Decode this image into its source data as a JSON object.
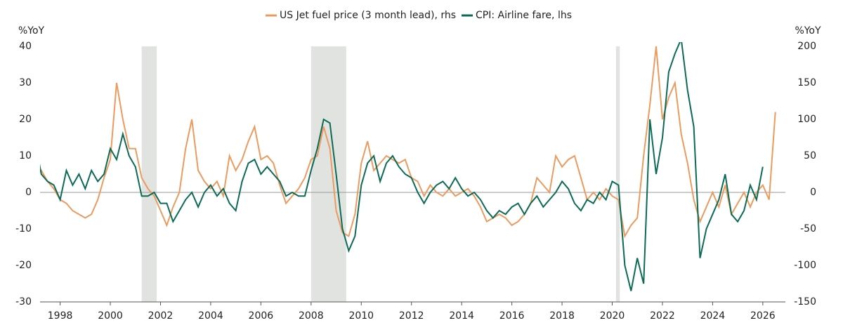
{
  "chart_data": {
    "type": "line",
    "y_label": "%YoY",
    "y2_label": "%YoY",
    "xlim": [
      1997.2,
      2026.9
    ],
    "xticks": [
      1998,
      2000,
      2002,
      2004,
      2006,
      2008,
      2010,
      2012,
      2014,
      2016,
      2018,
      2020,
      2022,
      2024,
      2026
    ],
    "ylim": [
      -30,
      40
    ],
    "yticks": [
      40,
      30,
      20,
      10,
      0,
      -10,
      -20,
      -30
    ],
    "y2lim": [
      -150,
      200
    ],
    "y2ticks": [
      200,
      150,
      100,
      50,
      0,
      -50,
      -100,
      -150
    ],
    "shaded_periods": [
      [
        2001.25,
        2001.85
      ],
      [
        2008.0,
        2009.4
      ],
      [
        2020.15,
        2020.3
      ]
    ],
    "shade_color": "#e1e3e1",
    "x": [
      1997,
      1997.25,
      1997.5,
      1997.75,
      1998,
      1998.25,
      1998.5,
      1998.75,
      1999,
      1999.25,
      1999.5,
      1999.75,
      2000,
      2000.25,
      2000.5,
      2000.75,
      2001,
      2001.25,
      2001.5,
      2001.75,
      2002,
      2002.25,
      2002.5,
      2002.75,
      2003,
      2003.25,
      2003.5,
      2003.75,
      2004,
      2004.25,
      2004.5,
      2004.75,
      2005,
      2005.25,
      2005.5,
      2005.75,
      2006,
      2006.25,
      2006.5,
      2006.75,
      2007,
      2007.25,
      2007.5,
      2007.75,
      2008,
      2008.25,
      2008.5,
      2008.75,
      2009,
      2009.25,
      2009.5,
      2009.75,
      2010,
      2010.25,
      2010.5,
      2010.75,
      2011,
      2011.25,
      2011.5,
      2011.75,
      2012,
      2012.25,
      2012.5,
      2012.75,
      2013,
      2013.25,
      2013.5,
      2013.75,
      2014,
      2014.25,
      2014.5,
      2014.75,
      2015,
      2015.25,
      2015.5,
      2015.75,
      2016,
      2016.25,
      2016.5,
      2016.75,
      2017,
      2017.25,
      2017.5,
      2017.75,
      2018,
      2018.25,
      2018.5,
      2018.75,
      2019,
      2019.25,
      2019.5,
      2019.75,
      2020,
      2020.25,
      2020.5,
      2020.75,
      2021,
      2021.25,
      2021.5,
      2021.75,
      2022,
      2022.25,
      2022.5,
      2022.75,
      2023,
      2023.25,
      2023.5,
      2023.75,
      2024,
      2024.25,
      2024.5,
      2024.75,
      2025,
      2025.25,
      2025.5,
      2025.75,
      2026,
      2026.25,
      2026.5
    ],
    "series": [
      {
        "name": "US Jet fuel price (3 month lead), rhs",
        "color": "#eb9b5f",
        "axis": "y2",
        "values": [
          25,
          30,
          15,
          5,
          -10,
          -15,
          -25,
          -30,
          -35,
          -30,
          -10,
          20,
          45,
          150,
          100,
          60,
          60,
          20,
          5,
          -5,
          -25,
          -45,
          -20,
          0,
          60,
          100,
          30,
          15,
          5,
          15,
          -5,
          50,
          30,
          45,
          70,
          90,
          45,
          50,
          40,
          10,
          -15,
          -5,
          5,
          20,
          45,
          50,
          90,
          60,
          -25,
          -55,
          -60,
          -30,
          40,
          70,
          30,
          40,
          50,
          45,
          40,
          45,
          20,
          15,
          -5,
          10,
          0,
          -5,
          5,
          -5,
          0,
          5,
          -5,
          -20,
          -40,
          -35,
          -30,
          -35,
          -45,
          -40,
          -30,
          -15,
          20,
          10,
          0,
          50,
          35,
          45,
          50,
          20,
          -10,
          0,
          -10,
          5,
          -5,
          -10,
          -60,
          -45,
          -35,
          50,
          120,
          200,
          100,
          130,
          150,
          80,
          40,
          -10,
          -40,
          -20,
          0,
          -20,
          10,
          -30,
          -15,
          0,
          -20,
          0,
          10,
          -10,
          110
        ]
      },
      {
        "name": "CPI: Airline fare, lhs",
        "color": "#0b6b55",
        "values": [
          14,
          5,
          3,
          2,
          -2,
          6,
          2,
          5,
          1,
          6,
          3,
          5,
          12,
          9,
          16,
          10,
          7,
          -1,
          -1,
          0,
          -3,
          -3,
          -8,
          -5,
          -2,
          0,
          -4,
          0,
          2,
          -1,
          1,
          -3,
          -5,
          3,
          8,
          9,
          5,
          7,
          5,
          3,
          -1,
          0,
          -1,
          -1,
          6,
          12,
          20,
          19,
          5,
          -10,
          -16,
          -12,
          2,
          8,
          10,
          3,
          8,
          10,
          7,
          5,
          4,
          0,
          -3,
          0,
          2,
          3,
          1,
          4,
          1,
          -1,
          0,
          -2,
          -5,
          -7,
          -5,
          -6,
          -4,
          -3,
          -6,
          -3,
          -1,
          -4,
          -2,
          0,
          3,
          1,
          -3,
          -5,
          -2,
          -3,
          0,
          -2,
          3,
          2,
          -20,
          -27,
          -18,
          -25,
          20,
          5,
          15,
          33,
          38,
          42,
          28,
          18,
          -18,
          -10,
          -6,
          -2,
          5,
          -6,
          -8,
          -5,
          2,
          -2,
          7,
          null,
          null
        ]
      }
    ]
  }
}
